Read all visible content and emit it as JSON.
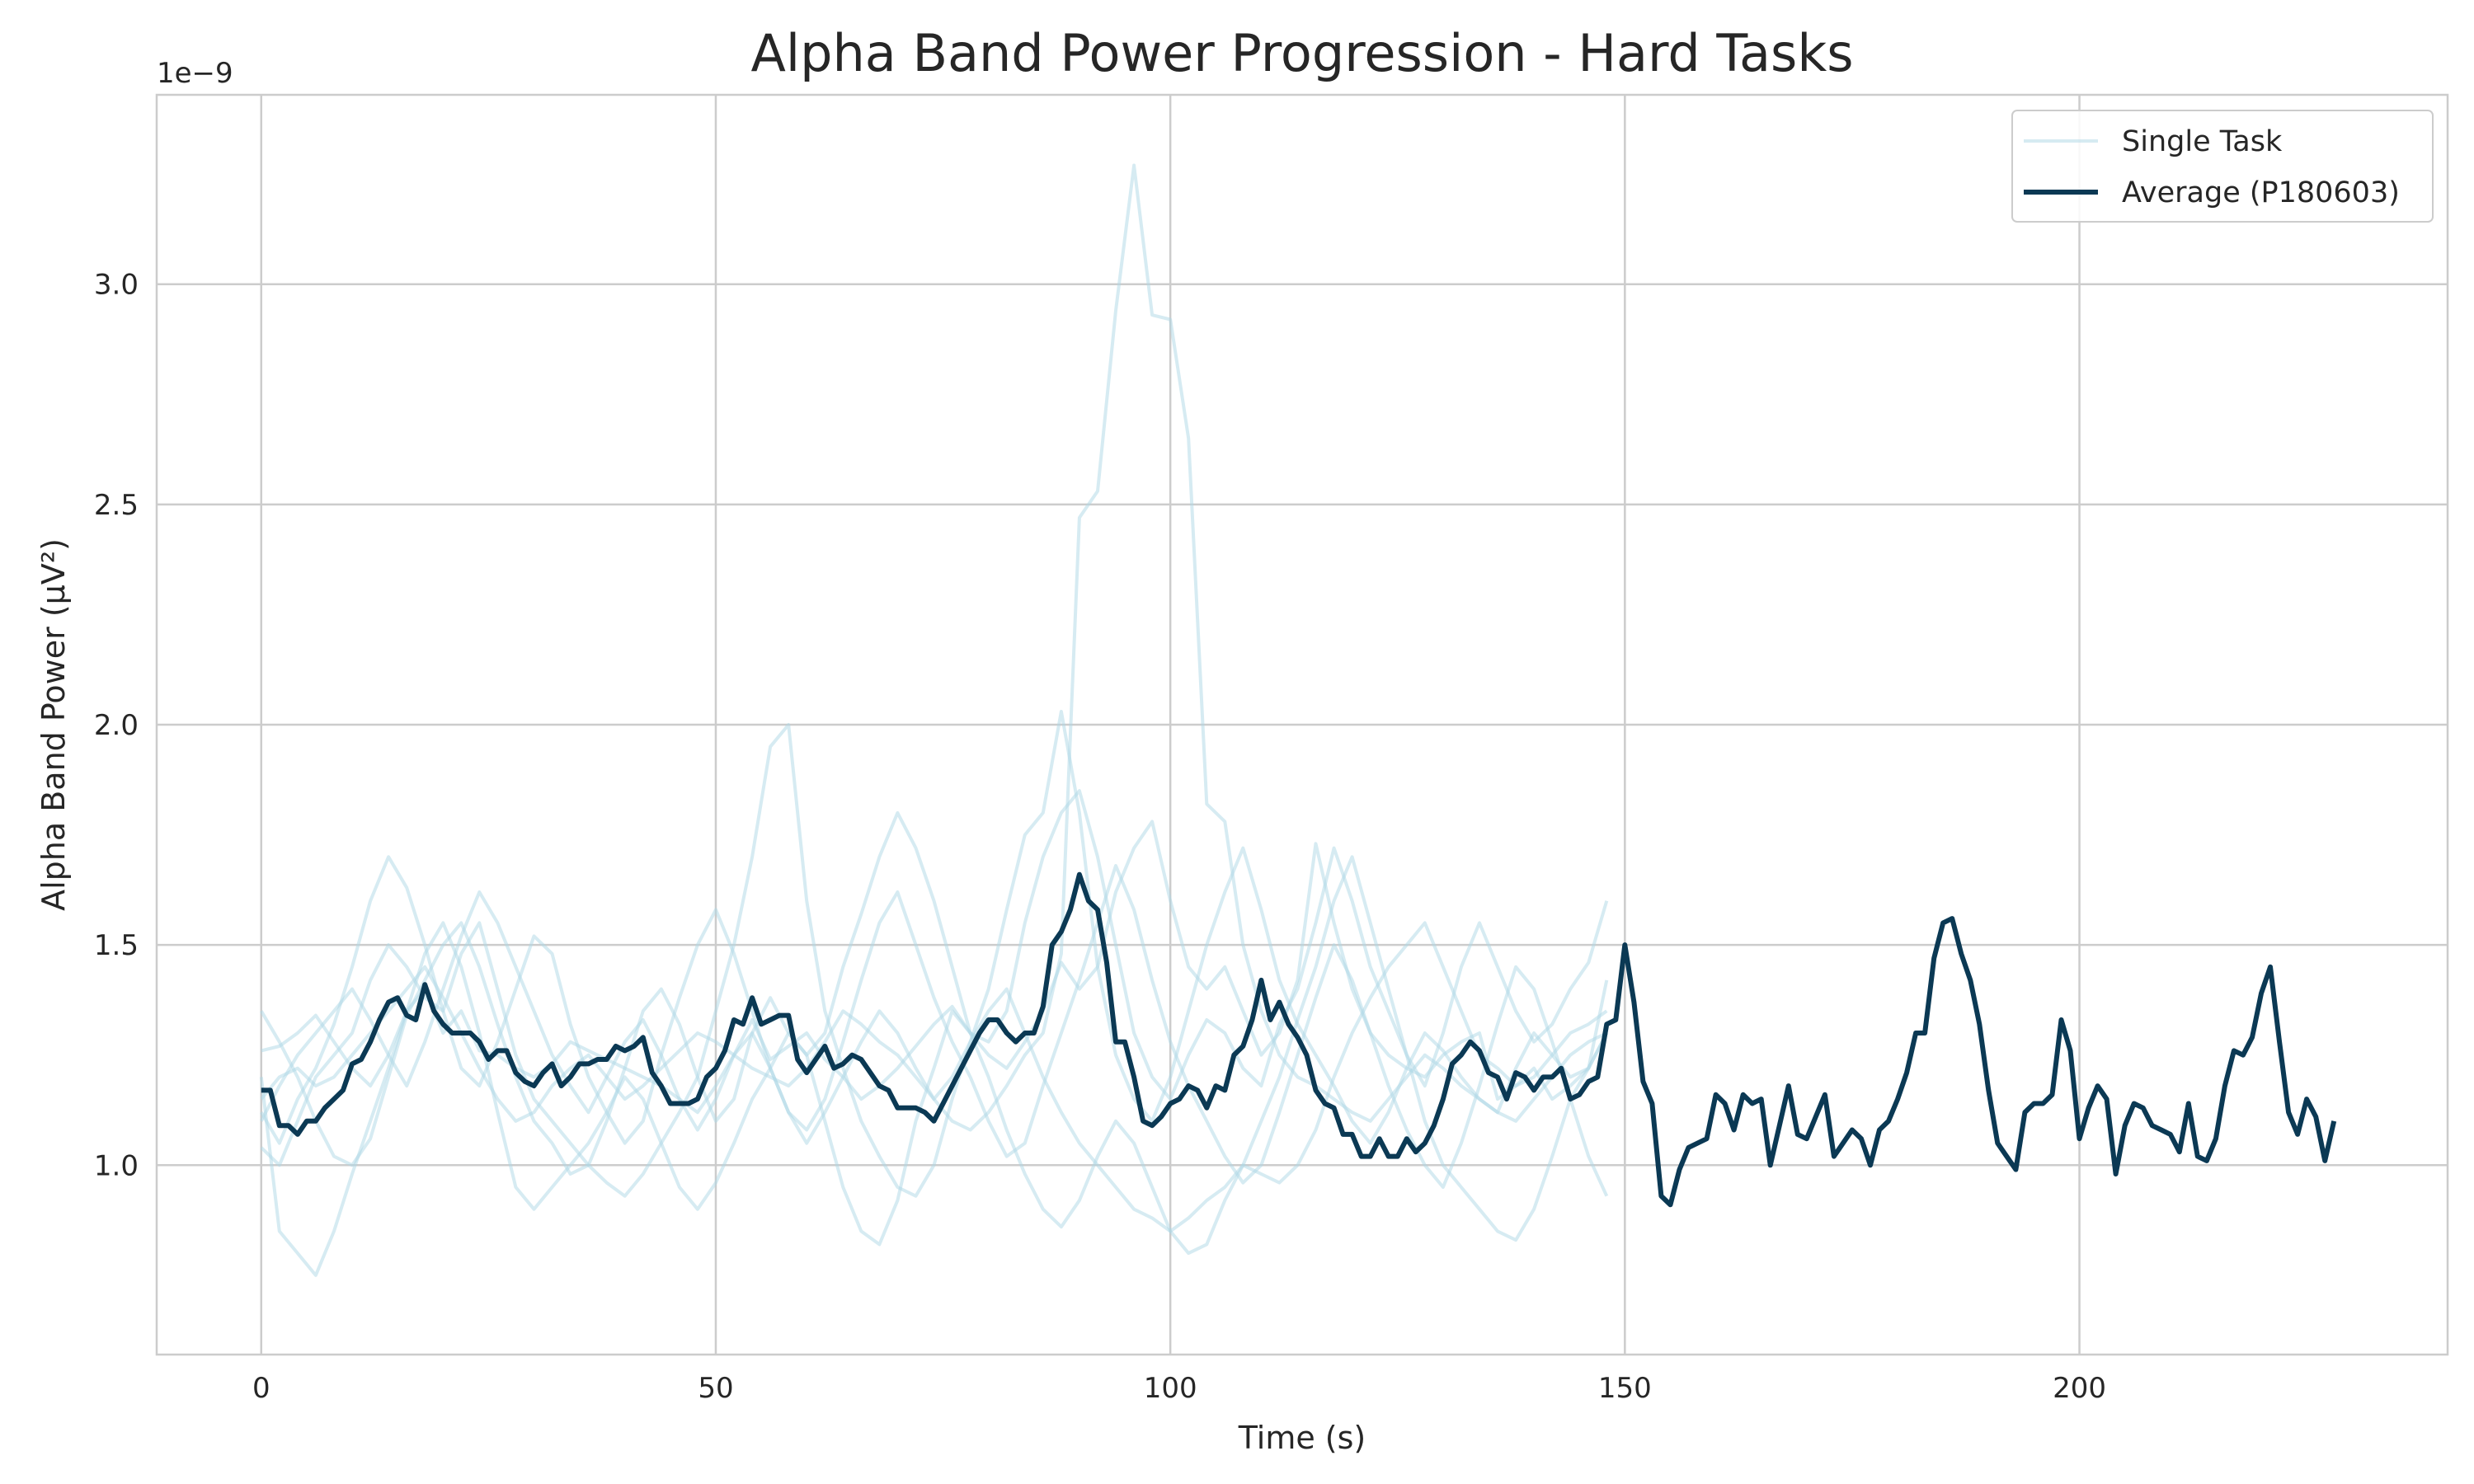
{
  "chart_data": {
    "type": "line",
    "title": "Alpha Band Power Progression - Hard Tasks",
    "xlabel": "Time (s)",
    "ylabel": "Alpha Band Power (μV²)",
    "y_offset_text": "1e−9",
    "xlim": [
      -11.5,
      240.5
    ],
    "ylim": [
      0.57,
      3.43
    ],
    "y_scale": 1e-09,
    "xticks": [
      0,
      50,
      100,
      150,
      200
    ],
    "xtick_labels": [
      "0",
      "50",
      "100",
      "150",
      "200"
    ],
    "yticks": [
      1.0,
      1.5,
      2.0,
      2.5,
      3.0
    ],
    "ytick_labels": [
      "1.0",
      "1.5",
      "2.0",
      "2.5",
      "3.0"
    ],
    "grid": true,
    "legend_location": "upper right",
    "legend": [
      "Single Task",
      "Average (P180603)"
    ],
    "colors": {
      "single": "#add8e6",
      "average": "#0b3954",
      "grid": "#cccccc",
      "spine": "#cccccc"
    },
    "series": [
      {
        "name": "Average (P180603)",
        "role": "average",
        "x_start": 0,
        "x_step": 1,
        "values": [
          1.17,
          1.17,
          1.09,
          1.09,
          1.07,
          1.1,
          1.1,
          1.13,
          1.15,
          1.17,
          1.23,
          1.24,
          1.28,
          1.33,
          1.37,
          1.38,
          1.34,
          1.33,
          1.41,
          1.35,
          1.32,
          1.3,
          1.3,
          1.3,
          1.28,
          1.24,
          1.26,
          1.26,
          1.21,
          1.19,
          1.18,
          1.21,
          1.23,
          1.18,
          1.2,
          1.23,
          1.23,
          1.24,
          1.24,
          1.27,
          1.26,
          1.27,
          1.29,
          1.21,
          1.18,
          1.14,
          1.14,
          1.14,
          1.15,
          1.2,
          1.22,
          1.26,
          1.33,
          1.32,
          1.38,
          1.32,
          1.33,
          1.34,
          1.34,
          1.24,
          1.21,
          1.24,
          1.27,
          1.22,
          1.23,
          1.25,
          1.24,
          1.21,
          1.18,
          1.17,
          1.13,
          1.13,
          1.13,
          1.12,
          1.1,
          1.14,
          1.18,
          1.22,
          1.26,
          1.3,
          1.33,
          1.33,
          1.3,
          1.28,
          1.3,
          1.3,
          1.36,
          1.5,
          1.53,
          1.58,
          1.66,
          1.6,
          1.58,
          1.46,
          1.28,
          1.28,
          1.2,
          1.1,
          1.09,
          1.11,
          1.14,
          1.15,
          1.18,
          1.17,
          1.13,
          1.18,
          1.17,
          1.25,
          1.27,
          1.33,
          1.42,
          1.33,
          1.37,
          1.32,
          1.29,
          1.25,
          1.17,
          1.14,
          1.13,
          1.07,
          1.07,
          1.02,
          1.02,
          1.06,
          1.02,
          1.02,
          1.06,
          1.03,
          1.05,
          1.09,
          1.15,
          1.23,
          1.25,
          1.28,
          1.26,
          1.21,
          1.2,
          1.15,
          1.21,
          1.2,
          1.17,
          1.2,
          1.2,
          1.22,
          1.15,
          1.16,
          1.19,
          1.2,
          1.32,
          1.33,
          1.5,
          1.37,
          1.19,
          1.14,
          0.93,
          0.91,
          0.99,
          1.04,
          1.05,
          1.06,
          1.16,
          1.14,
          1.08,
          1.16,
          1.14,
          1.15,
          1.0,
          1.09,
          1.18,
          1.07,
          1.06,
          1.11,
          1.16,
          1.02,
          1.05,
          1.08,
          1.06,
          1.0,
          1.08,
          1.1,
          1.15,
          1.21,
          1.3,
          1.3,
          1.47,
          1.55,
          1.56,
          1.48,
          1.42,
          1.32,
          1.17,
          1.05,
          1.02,
          0.99,
          1.12,
          1.14,
          1.14,
          1.16,
          1.33,
          1.26,
          1.06,
          1.13,
          1.18,
          1.15,
          0.98,
          1.09,
          1.14,
          1.13,
          1.09,
          1.08,
          1.07,
          1.03,
          1.14,
          1.02,
          1.01,
          1.06,
          1.18,
          1.26,
          1.25,
          1.29,
          1.39,
          1.45,
          1.28,
          1.12,
          1.07,
          1.15,
          1.11,
          1.01,
          1.1
        ]
      },
      {
        "name": "Single Task",
        "role": "single",
        "x_start": 0,
        "x_step": 2,
        "values": [
          1.26,
          1.27,
          1.3,
          1.34,
          1.28,
          1.22,
          1.18,
          1.25,
          1.35,
          1.4,
          1.3,
          1.35,
          1.26,
          1.25,
          1.22,
          1.2,
          1.23,
          1.28,
          1.26,
          1.24,
          1.22,
          1.2,
          1.18,
          1.15,
          1.12,
          1.18,
          1.25,
          1.33,
          1.24,
          1.27,
          1.3,
          1.24,
          1.2,
          1.15,
          1.18,
          1.22,
          1.27,
          1.32,
          1.36,
          1.3,
          1.25,
          1.22,
          1.28,
          1.35,
          1.46,
          1.4,
          1.45,
          1.62,
          1.72,
          1.78,
          1.6,
          1.45,
          1.4,
          1.45,
          1.35,
          1.25,
          1.3,
          1.42,
          1.73,
          1.55,
          1.4,
          1.3,
          1.25,
          1.22,
          1.2,
          1.25,
          1.28,
          1.3,
          1.15,
          1.18,
          1.22,
          1.15,
          1.18,
          1.22,
          1.42
        ]
      },
      {
        "name": "Single Task",
        "role": "single",
        "x_start": 0,
        "x_step": 2,
        "values": [
          1.35,
          1.28,
          1.2,
          1.1,
          1.02,
          1.0,
          1.06,
          1.2,
          1.34,
          1.42,
          1.5,
          1.55,
          1.45,
          1.32,
          1.2,
          1.1,
          1.05,
          0.98,
          1.0,
          1.1,
          1.22,
          1.35,
          1.4,
          1.32,
          1.2,
          1.1,
          1.15,
          1.3,
          1.38,
          1.3,
          1.25,
          1.3,
          1.45,
          1.57,
          1.7,
          1.8,
          1.72,
          1.6,
          1.45,
          1.3,
          1.28,
          1.35,
          1.55,
          1.7,
          1.8,
          1.85,
          1.7,
          1.5,
          1.3,
          1.2,
          1.15,
          1.25,
          1.33,
          1.3,
          1.22,
          1.18,
          1.32,
          1.4,
          1.55,
          1.72,
          1.6,
          1.45,
          1.35,
          1.25,
          1.18,
          1.3,
          1.45,
          1.55,
          1.45,
          1.35,
          1.28,
          1.32,
          1.4,
          1.46,
          1.6
        ]
      },
      {
        "name": "Single Task",
        "role": "single",
        "x_start": 0,
        "x_step": 2,
        "values": [
          1.04,
          1.0,
          1.1,
          1.2,
          1.25,
          1.3,
          1.42,
          1.5,
          1.45,
          1.38,
          1.35,
          1.48,
          1.55,
          1.4,
          1.25,
          1.15,
          1.1,
          1.05,
          1.0,
          0.96,
          0.93,
          0.98,
          1.05,
          1.12,
          1.2,
          1.35,
          1.5,
          1.7,
          1.95,
          2.0,
          1.6,
          1.35,
          1.22,
          1.1,
          1.02,
          0.95,
          0.93,
          1.0,
          1.15,
          1.28,
          1.4,
          1.58,
          1.75,
          1.8,
          2.03,
          1.8,
          1.45,
          1.25,
          1.15,
          1.1,
          1.2,
          1.35,
          1.5,
          1.62,
          1.72,
          1.58,
          1.42,
          1.32,
          1.25,
          1.18,
          1.1,
          1.05,
          1.12,
          1.22,
          1.3,
          1.26,
          1.2,
          1.15,
          1.12,
          1.22,
          1.3,
          1.25,
          1.2,
          1.22,
          1.3
        ]
      },
      {
        "name": "Single Task",
        "role": "single",
        "x_start": 0,
        "x_step": 2,
        "values": [
          1.2,
          0.85,
          0.8,
          0.75,
          0.85,
          0.98,
          1.1,
          1.22,
          1.35,
          1.48,
          1.55,
          1.45,
          1.3,
          1.12,
          0.95,
          0.9,
          0.95,
          1.0,
          1.05,
          1.12,
          1.2,
          1.15,
          1.05,
          0.95,
          0.9,
          0.96,
          1.05,
          1.15,
          1.22,
          1.3,
          1.25,
          1.1,
          0.95,
          0.85,
          0.82,
          0.92,
          1.1,
          1.22,
          1.35,
          1.3,
          1.2,
          1.08,
          0.98,
          0.9,
          0.86,
          0.92,
          1.02,
          1.1,
          1.05,
          0.95,
          0.85,
          0.8,
          0.82,
          0.92,
          1.0,
          1.1,
          1.2,
          1.33,
          1.45,
          1.6,
          1.7,
          1.55,
          1.4,
          1.25,
          1.1,
          1.0,
          0.95,
          0.9,
          0.85,
          0.83,
          0.9,
          1.02,
          1.15,
          1.22,
          1.3
        ]
      },
      {
        "name": "Single Task",
        "role": "single",
        "x_start": 0,
        "x_step": 2,
        "values": [
          1.12,
          1.05,
          1.15,
          1.22,
          1.32,
          1.45,
          1.6,
          1.7,
          1.63,
          1.5,
          1.35,
          1.22,
          1.18,
          1.28,
          1.4,
          1.52,
          1.48,
          1.32,
          1.2,
          1.12,
          1.05,
          1.1,
          1.25,
          1.38,
          1.5,
          1.58,
          1.48,
          1.35,
          1.22,
          1.12,
          1.08,
          1.15,
          1.28,
          1.42,
          1.55,
          1.62,
          1.5,
          1.38,
          1.28,
          1.2,
          1.1,
          1.02,
          1.05,
          1.18,
          1.3,
          1.42,
          1.55,
          1.68,
          1.58,
          1.42,
          1.28,
          1.18,
          1.1,
          1.02,
          0.96,
          1.0,
          1.12,
          1.25,
          1.38,
          1.5,
          1.42,
          1.3,
          1.18,
          1.08,
          1.0,
          0.95,
          1.05,
          1.18,
          1.32,
          1.45,
          1.4,
          1.28,
          1.15,
          1.02,
          0.93
        ]
      },
      {
        "name": "Single Task",
        "role": "single",
        "x_start": 0,
        "x_step": 2,
        "values": [
          1.1,
          1.18,
          1.25,
          1.3,
          1.35,
          1.4,
          1.33,
          1.25,
          1.18,
          1.28,
          1.4,
          1.52,
          1.62,
          1.55,
          1.45,
          1.35,
          1.25,
          1.18,
          1.12,
          1.2,
          1.28,
          1.33,
          1.25,
          1.15,
          1.08,
          1.15,
          1.25,
          1.3,
          1.22,
          1.12,
          1.05,
          1.12,
          1.2,
          1.28,
          1.35,
          1.3,
          1.22,
          1.15,
          1.2,
          1.28,
          1.35,
          1.4,
          1.3,
          1.2,
          1.12,
          1.05,
          1.0,
          0.95,
          0.9,
          0.88,
          0.85,
          0.88,
          0.92,
          0.95,
          1.0,
          0.98,
          0.96,
          1.0,
          1.08,
          1.2,
          1.3,
          1.38,
          1.45,
          1.5,
          1.55,
          1.45,
          1.35,
          1.25,
          1.22,
          1.18,
          1.2,
          1.25,
          1.3,
          1.32,
          1.35
        ]
      },
      {
        "name": "Single Task",
        "role": "single",
        "x_start": 0,
        "x_step": 2,
        "values": [
          1.15,
          1.2,
          1.22,
          1.18,
          1.2,
          1.25,
          1.3,
          1.35,
          1.4,
          1.45,
          1.38,
          1.3,
          1.22,
          1.15,
          1.1,
          1.12,
          1.18,
          1.22,
          1.25,
          1.2,
          1.15,
          1.18,
          1.22,
          1.26,
          1.3,
          1.28,
          1.25,
          1.22,
          1.2,
          1.18,
          1.22,
          1.28,
          1.35,
          1.32,
          1.28,
          1.25,
          1.2,
          1.15,
          1.1,
          1.08,
          1.12,
          1.18,
          1.25,
          1.3,
          1.48,
          2.47,
          2.53,
          2.94,
          3.27,
          2.93,
          2.92,
          2.65,
          1.82,
          1.78,
          1.5,
          1.35,
          1.25,
          1.2,
          1.18,
          1.15,
          1.12,
          1.1,
          1.15,
          1.2,
          1.25,
          1.22,
          1.18,
          1.15,
          1.12,
          1.1,
          1.15,
          1.2,
          1.25,
          1.28,
          1.3
        ]
      }
    ]
  }
}
